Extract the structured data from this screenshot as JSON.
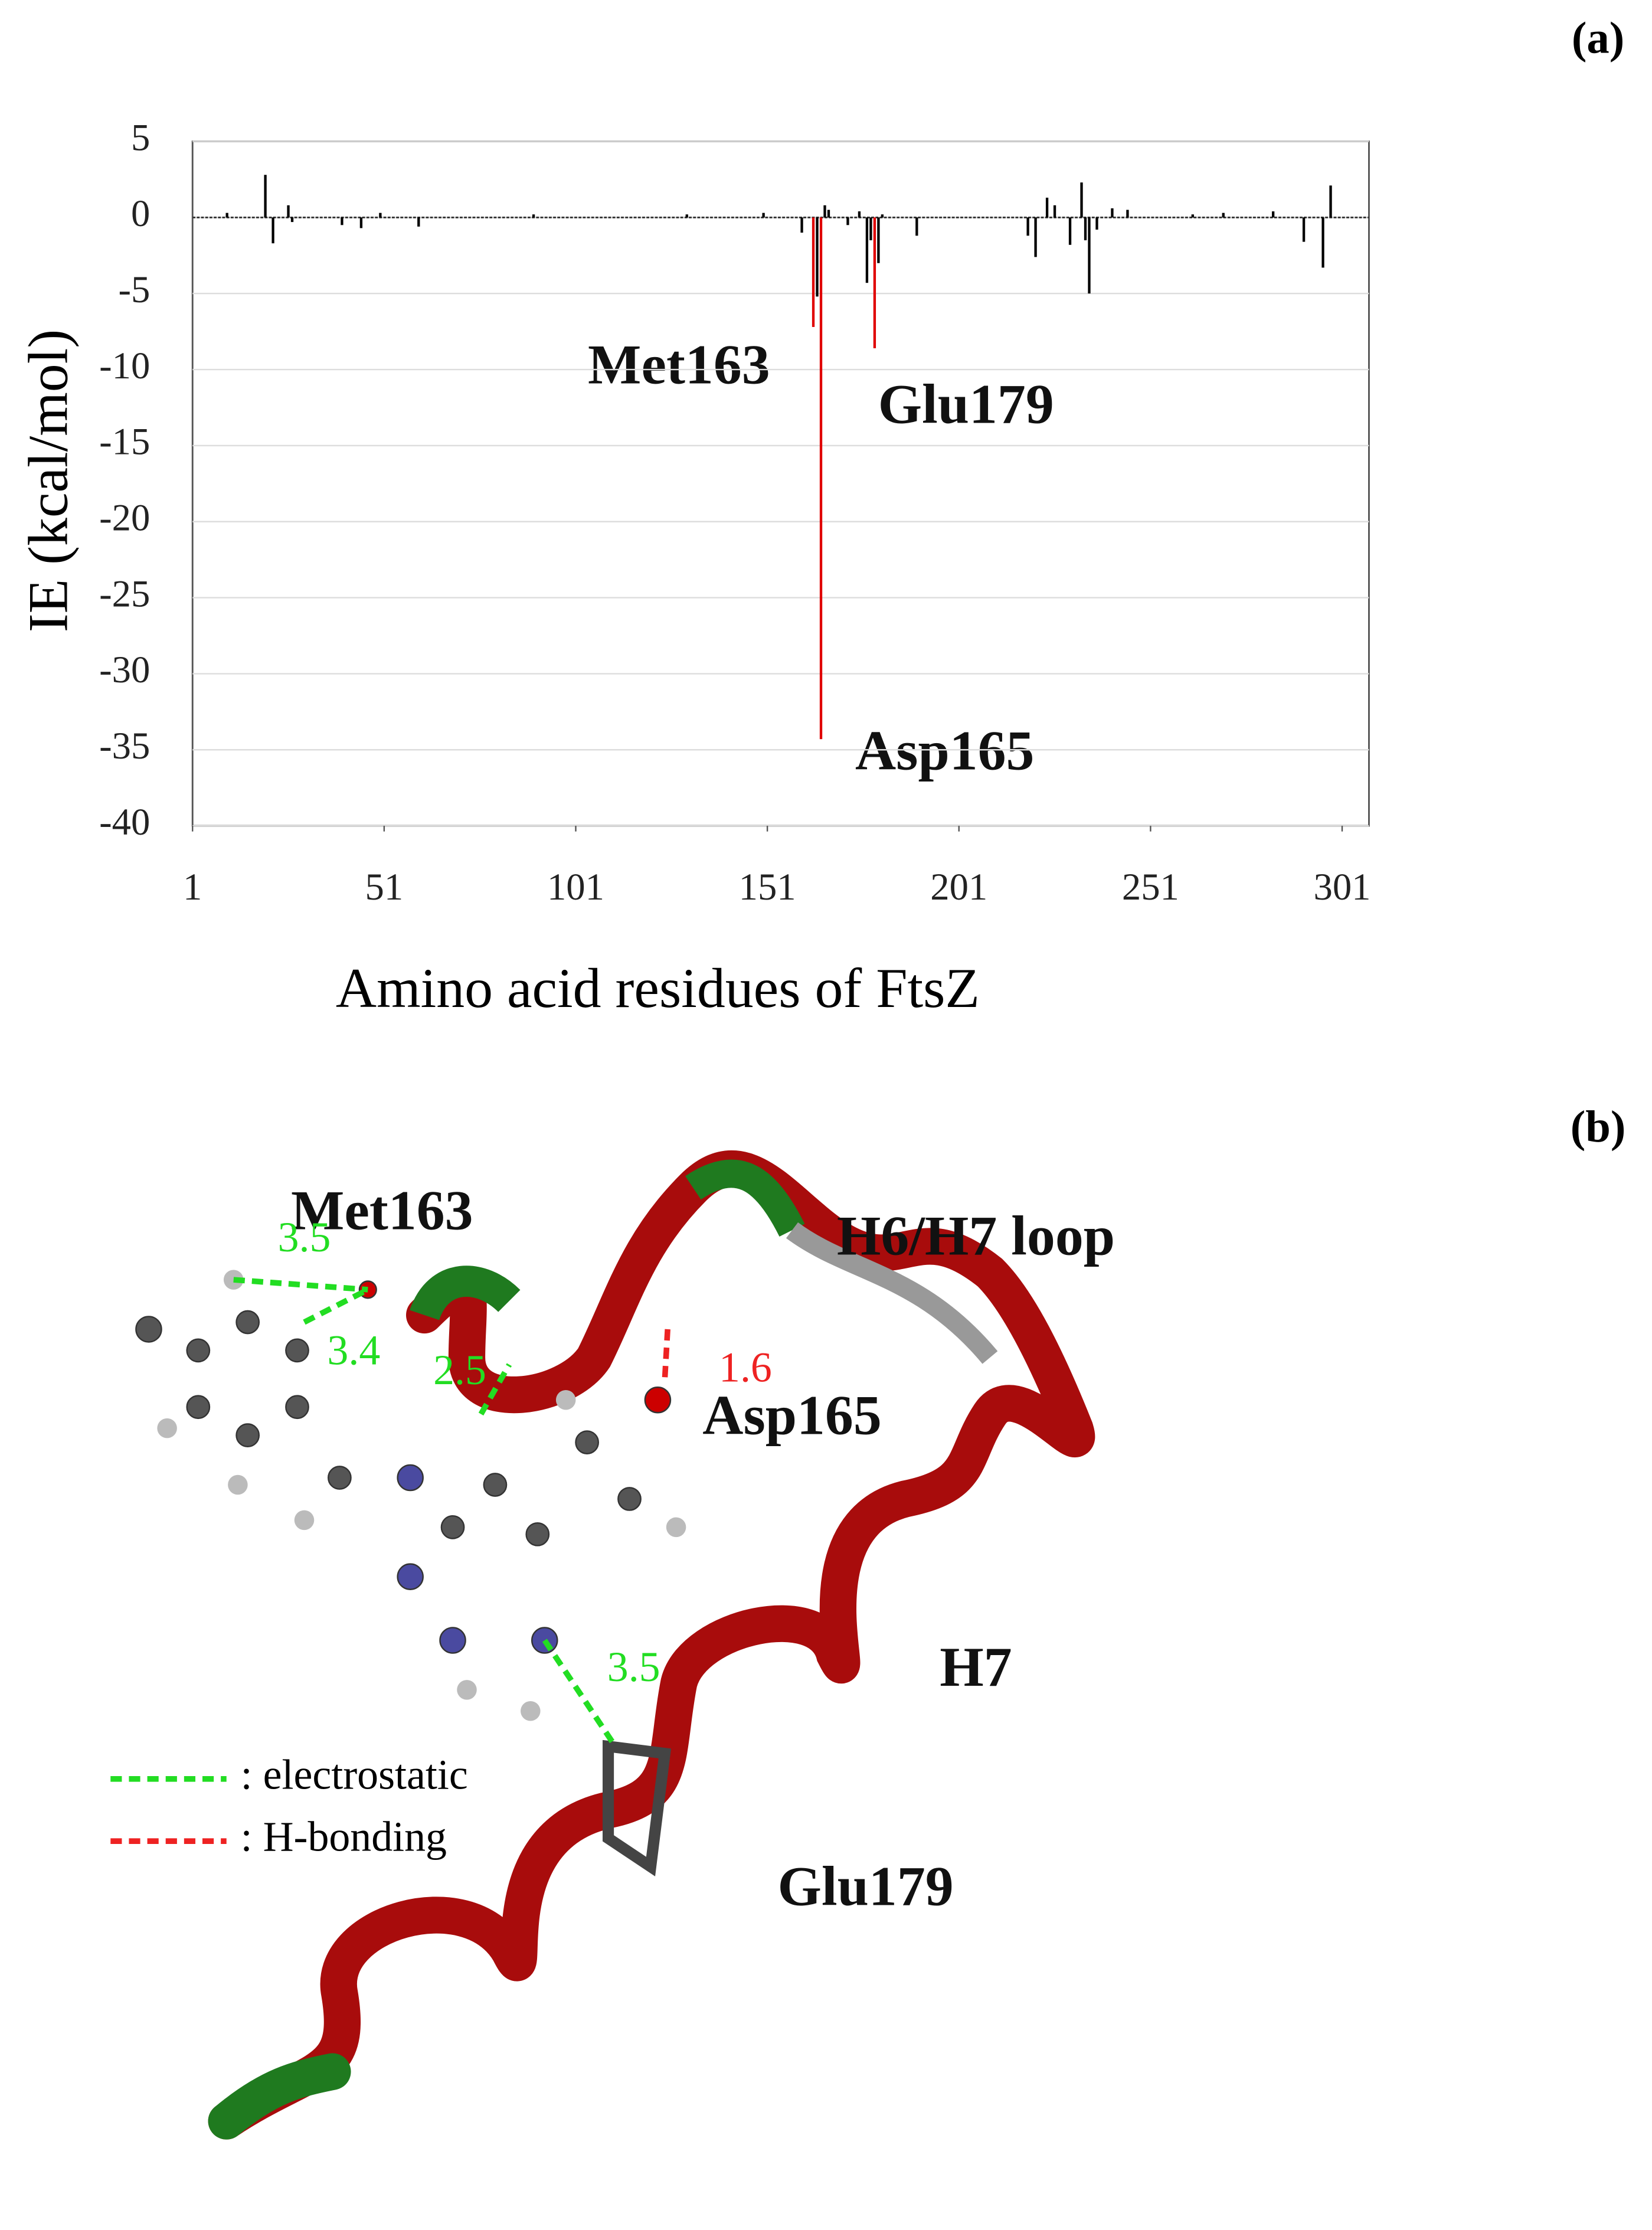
{
  "chart_data": {
    "type": "bar",
    "panel_label": "(a)",
    "ylabel": "IE (kcal/mol)",
    "xlabel": "Amino acid residues of FtsZ",
    "x": [
      10,
      20,
      22,
      26,
      27,
      40,
      45,
      50,
      60,
      90,
      130,
      150,
      160,
      163,
      164,
      165,
      166,
      167,
      172,
      175,
      177,
      178,
      179,
      180,
      181,
      190,
      219,
      221,
      224,
      226,
      230,
      233,
      234,
      235,
      237,
      241,
      245,
      262,
      270,
      283,
      291,
      296,
      298
    ],
    "values": [
      0.3,
      2.8,
      -1.7,
      0.8,
      -0.3,
      -0.5,
      -0.7,
      0.3,
      -0.6,
      0.2,
      0.2,
      0.3,
      -1.0,
      -7.2,
      -5.2,
      -34.3,
      0.8,
      0.5,
      -0.5,
      0.4,
      -4.3,
      -1.5,
      -8.6,
      -3.0,
      0.2,
      -1.2,
      -1.2,
      -2.6,
      1.3,
      0.8,
      -1.8,
      2.3,
      -1.5,
      -5.0,
      -0.8,
      0.6,
      0.5,
      0.2,
      0.3,
      0.4,
      -1.6,
      -3.3,
      2.1
    ],
    "bar_colors": [
      "#000000",
      "#000000",
      "#000000",
      "#000000",
      "#000000",
      "#000000",
      "#000000",
      "#000000",
      "#000000",
      "#000000",
      "#000000",
      "#000000",
      "#000000",
      "#e00000",
      "#000000",
      "#e00000",
      "#000000",
      "#000000",
      "#000000",
      "#000000",
      "#000000",
      "#000000",
      "#e00000",
      "#000000",
      "#000000",
      "#000000",
      "#000000",
      "#000000",
      "#000000",
      "#000000",
      "#000000",
      "#000000",
      "#000000",
      "#000000",
      "#000000",
      "#000000",
      "#000000",
      "#000000",
      "#000000",
      "#000000",
      "#000000",
      "#000000",
      "#000000"
    ],
    "xlim": [
      1,
      308
    ],
    "xticks": [
      1,
      51,
      101,
      151,
      201,
      251,
      301
    ],
    "ylim": [
      -40,
      5
    ],
    "yticks": [
      -40,
      -35,
      -30,
      -25,
      -20,
      -15,
      -10,
      -5,
      0,
      5
    ],
    "grid": true,
    "annotations": [
      "Met163",
      "Glu179",
      "Asp165"
    ]
  },
  "panel_b": {
    "panel_label": "(b)",
    "labels": [
      "Met163",
      "H6/H7 loop",
      "Asp165",
      "H7",
      "Glu179"
    ],
    "distances": [
      "3.5",
      "3.4",
      "2.5",
      "1.6",
      "3.5"
    ],
    "legend": [
      ": electrostatic",
      ": H-bonding"
    ]
  }
}
